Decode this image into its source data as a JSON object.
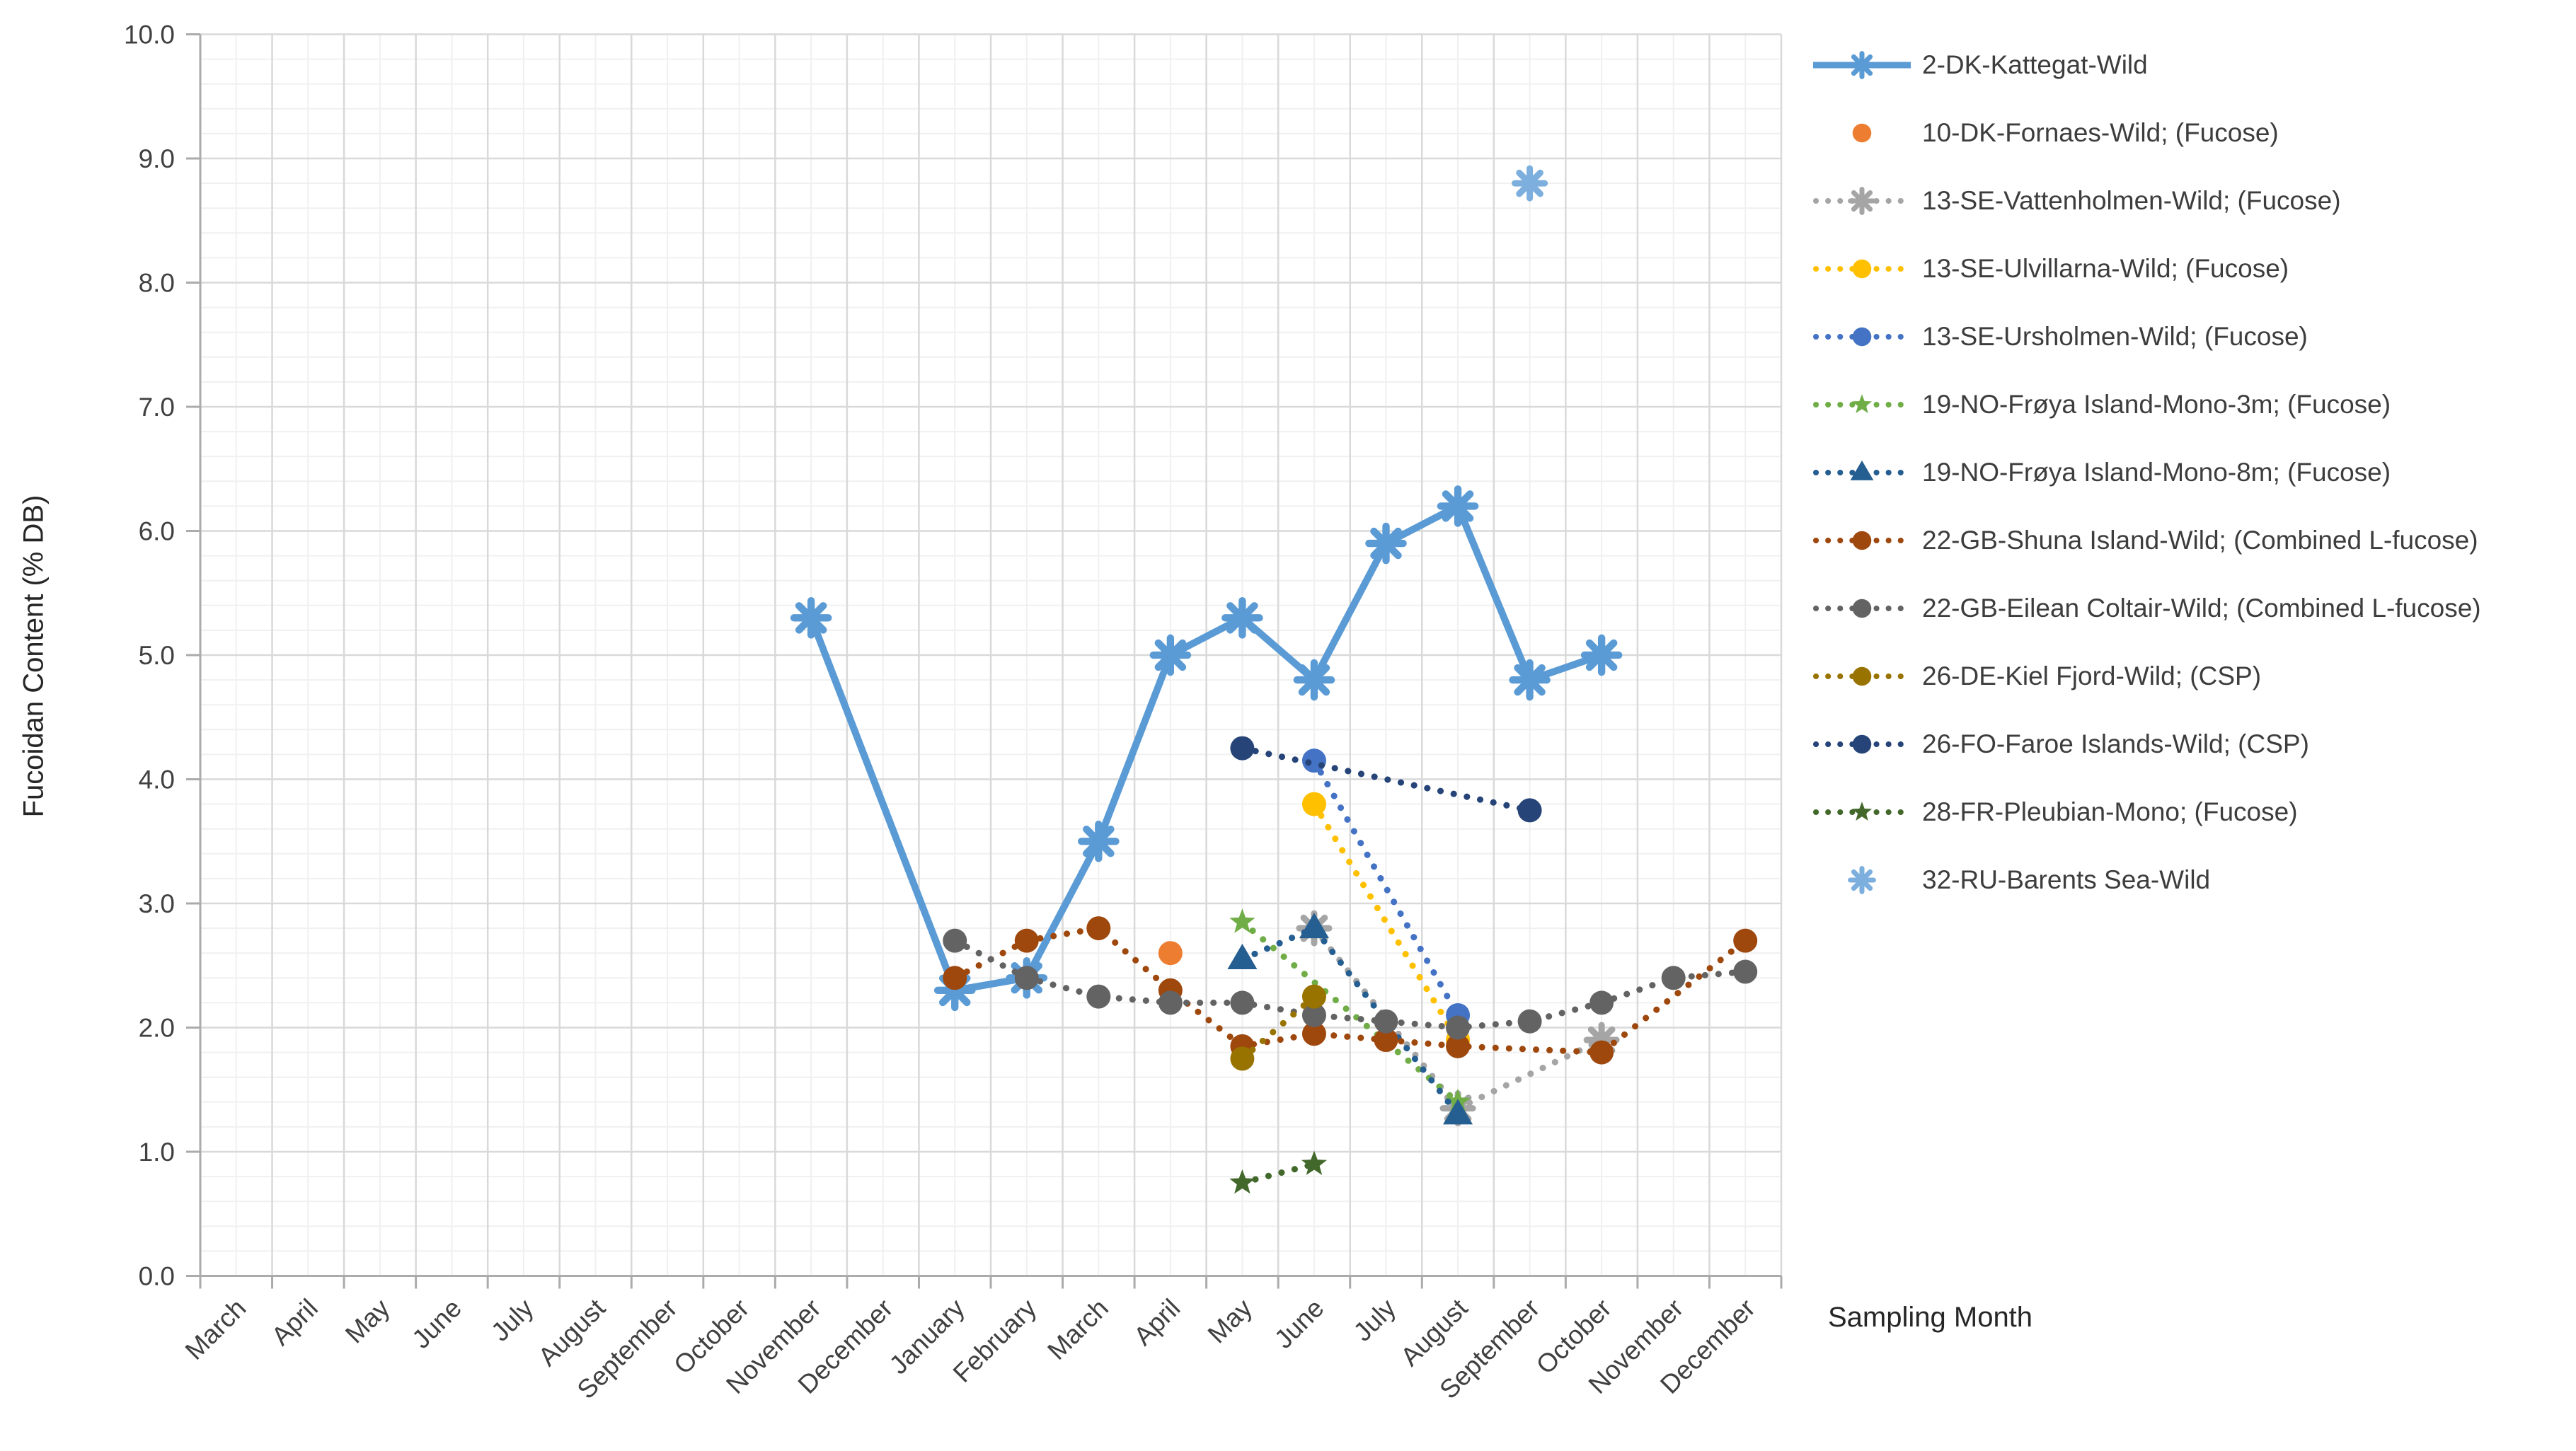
{
  "chart_data": {
    "type": "line",
    "title": "",
    "xlabel": "Sampling Month",
    "ylabel": "Fucoidan Content (% DB)",
    "ylim": [
      0.0,
      10.0
    ],
    "ytick_step": 1.0,
    "ytick_labels": [
      "0.0",
      "1.0",
      "2.0",
      "3.0",
      "4.0",
      "5.0",
      "6.0",
      "7.0",
      "8.0",
      "9.0",
      "10.0"
    ],
    "categories": [
      "March",
      "April",
      "May",
      "June",
      "July",
      "August",
      "September",
      "October",
      "November",
      "December",
      "January",
      "February",
      "March",
      "April",
      "May",
      "June",
      "July",
      "August",
      "September",
      "October",
      "November",
      "December"
    ],
    "grid": {
      "major": true,
      "minor": true
    },
    "legend_position": "right",
    "series": [
      {
        "id": "kattegat",
        "label": "2-DK-Kattegat-Wild",
        "color": "#5B9BD5",
        "marker": "asterisk",
        "line": "solid",
        "points": [
          {
            "month_index": 8,
            "value": 5.3
          },
          {
            "month_index": 10,
            "value": 2.3
          },
          {
            "month_index": 11,
            "value": 2.4
          },
          {
            "month_index": 12,
            "value": 3.5
          },
          {
            "month_index": 13,
            "value": 5.0
          },
          {
            "month_index": 14,
            "value": 5.3
          },
          {
            "month_index": 15,
            "value": 4.8
          },
          {
            "month_index": 16,
            "value": 5.9
          },
          {
            "month_index": 17,
            "value": 6.2
          },
          {
            "month_index": 18,
            "value": 4.8
          },
          {
            "month_index": 19,
            "value": 5.0
          }
        ]
      },
      {
        "id": "fornaes",
        "label": "10-DK-Fornaes-Wild; (Fucose)",
        "color": "#ED7D31",
        "marker": "circle",
        "line": "none",
        "points": [
          {
            "month_index": 13,
            "value": 2.6
          }
        ]
      },
      {
        "id": "vattenholmen",
        "label": "13-SE-Vattenholmen-Wild; (Fucose)",
        "color": "#A5A5A5",
        "marker": "asterisk",
        "line": "dotted",
        "points": [
          {
            "month_index": 15,
            "value": 2.8
          },
          {
            "month_index": 17,
            "value": 1.35
          },
          {
            "month_index": 19,
            "value": 1.9
          }
        ]
      },
      {
        "id": "ulvillarna",
        "label": "13-SE-Ulvillarna-Wild; (Fucose)",
        "color": "#FFC000",
        "marker": "circle",
        "line": "dotted",
        "points": [
          {
            "month_index": 15,
            "value": 3.8
          },
          {
            "month_index": 17,
            "value": 1.9
          }
        ]
      },
      {
        "id": "ursholmen",
        "label": "13-SE-Ursholmen-Wild; (Fucose)",
        "color": "#4472C4",
        "marker": "circle",
        "line": "dotted",
        "points": [
          {
            "month_index": 15,
            "value": 4.15
          },
          {
            "month_index": 17,
            "value": 2.1
          }
        ]
      },
      {
        "id": "froya3m",
        "label": "19-NO-Frøya Island-Mono-3m; (Fucose)",
        "color": "#70AD47",
        "marker": "star",
        "line": "dotted",
        "points": [
          {
            "month_index": 14,
            "value": 2.85
          },
          {
            "month_index": 17,
            "value": 1.4
          }
        ]
      },
      {
        "id": "froya8m",
        "label": "19-NO-Frøya Island-Mono-8m; (Fucose)",
        "color": "#255E91",
        "marker": "triangle",
        "line": "dotted",
        "points": [
          {
            "month_index": 14,
            "value": 2.55
          },
          {
            "month_index": 15,
            "value": 2.8
          },
          {
            "month_index": 17,
            "value": 1.3
          }
        ]
      },
      {
        "id": "shuna",
        "label": "22-GB-Shuna Island-Wild; (Combined L-fucose)",
        "color": "#9E480E",
        "marker": "circle",
        "line": "dotted",
        "points": [
          {
            "month_index": 10,
            "value": 2.4
          },
          {
            "month_index": 11,
            "value": 2.7
          },
          {
            "month_index": 12,
            "value": 2.8
          },
          {
            "month_index": 13,
            "value": 2.3
          },
          {
            "month_index": 14,
            "value": 1.85
          },
          {
            "month_index": 15,
            "value": 1.95
          },
          {
            "month_index": 16,
            "value": 1.9
          },
          {
            "month_index": 17,
            "value": 1.85
          },
          {
            "month_index": 19,
            "value": 1.8
          },
          {
            "month_index": 21,
            "value": 2.7
          }
        ]
      },
      {
        "id": "eilean",
        "label": "22-GB-Eilean Coltair-Wild; (Combined L-fucose)",
        "color": "#636363",
        "marker": "circle",
        "line": "dotted",
        "points": [
          {
            "month_index": 10,
            "value": 2.7
          },
          {
            "month_index": 11,
            "value": 2.4
          },
          {
            "month_index": 12,
            "value": 2.25
          },
          {
            "month_index": 13,
            "value": 2.2
          },
          {
            "month_index": 14,
            "value": 2.2
          },
          {
            "month_index": 15,
            "value": 2.1
          },
          {
            "month_index": 16,
            "value": 2.05
          },
          {
            "month_index": 17,
            "value": 2.0
          },
          {
            "month_index": 18,
            "value": 2.05
          },
          {
            "month_index": 19,
            "value": 2.2
          },
          {
            "month_index": 20,
            "value": 2.4
          },
          {
            "month_index": 21,
            "value": 2.45
          }
        ]
      },
      {
        "id": "kiel",
        "label": "26-DE-Kiel Fjord-Wild; (CSP)",
        "color": "#997300",
        "marker": "circle",
        "line": "dotted",
        "points": [
          {
            "month_index": 14,
            "value": 1.75
          },
          {
            "month_index": 15,
            "value": 2.25
          }
        ]
      },
      {
        "id": "faroe",
        "label": "26-FO-Faroe Islands-Wild; (CSP)",
        "color": "#264478",
        "marker": "circle",
        "line": "dotted",
        "points": [
          {
            "month_index": 14,
            "value": 4.25
          },
          {
            "month_index": 18,
            "value": 3.75
          }
        ]
      },
      {
        "id": "pleubian",
        "label": "28-FR-Pleubian-Mono; (Fucose)",
        "color": "#43682B",
        "marker": "star",
        "line": "dotted",
        "points": [
          {
            "month_index": 14,
            "value": 0.75
          },
          {
            "month_index": 15,
            "value": 0.9
          }
        ]
      },
      {
        "id": "barents",
        "label": "32-RU-Barents Sea-Wild",
        "color": "#7CAFDE",
        "marker": "asterisk",
        "line": "none",
        "points": [
          {
            "month_index": 18,
            "value": 8.8
          }
        ]
      }
    ]
  },
  "style_colors": {
    "major_grid": "#D9D9D9",
    "minor_grid": "#F0F0F0",
    "axis_line": "#ABABAB",
    "tick_label": "#404040",
    "axis_title": "#262626"
  }
}
